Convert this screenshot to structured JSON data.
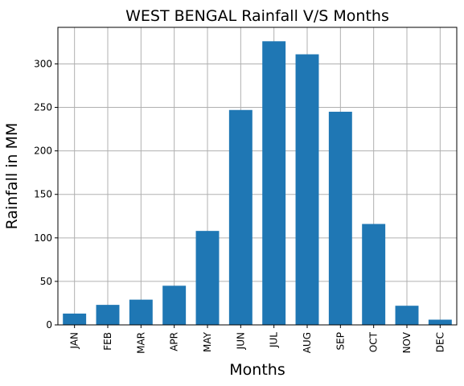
{
  "chart_data": {
    "type": "bar",
    "title": "WEST BENGAL Rainfall V/S Months",
    "xlabel": "Months",
    "ylabel": "Rainfall in MM",
    "categories": [
      "JAN",
      "FEB",
      "MAR",
      "APR",
      "MAY",
      "JUN",
      "JUL",
      "AUG",
      "SEP",
      "OCT",
      "NOV",
      "DEC"
    ],
    "values": [
      13,
      23,
      29,
      45,
      108,
      247,
      326,
      311,
      245,
      116,
      22,
      6
    ],
    "ylim": [
      0,
      342
    ],
    "yticks": [
      0,
      50,
      100,
      150,
      200,
      250,
      300
    ],
    "grid": true,
    "bar_color": "#1f77b4",
    "grid_color": "#b0b0b0"
  }
}
